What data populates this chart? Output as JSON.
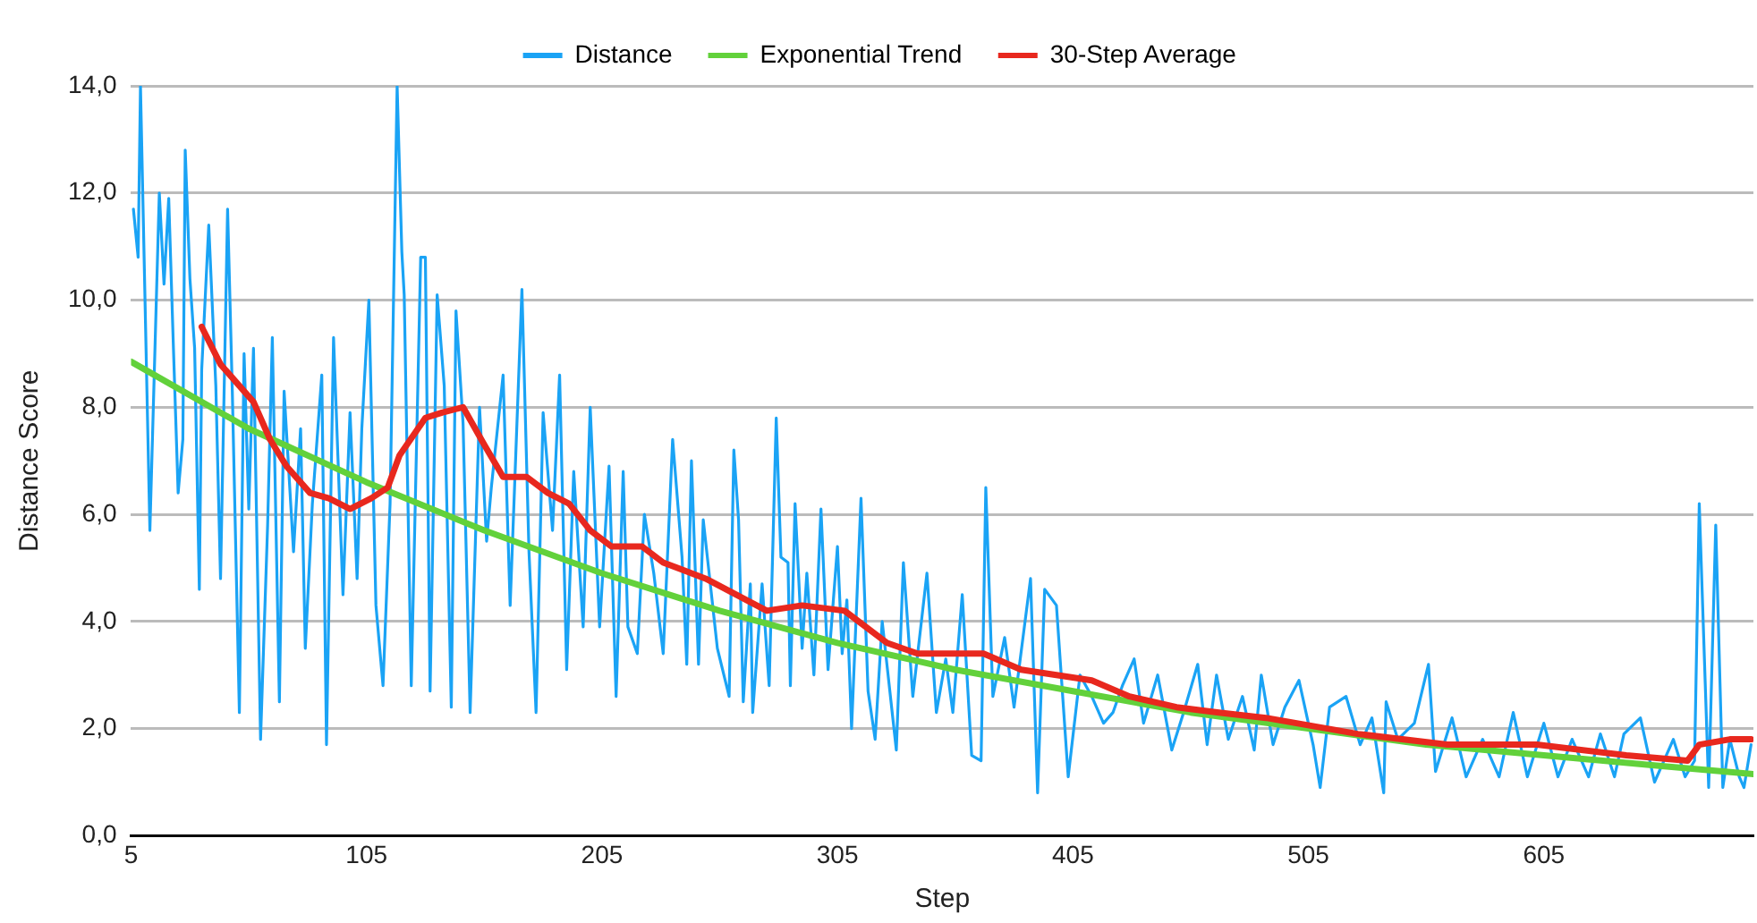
{
  "chart_data": {
    "type": "line",
    "xlabel": "Step",
    "ylabel": "Distance Score",
    "xlim": [
      5,
      694
    ],
    "xticks": [
      5,
      105,
      205,
      305,
      405,
      505,
      605
    ],
    "ylim": [
      0,
      14
    ],
    "yticks": [
      {
        "value": 0,
        "label": "0,0"
      },
      {
        "value": 2,
        "label": "2,0"
      },
      {
        "value": 4,
        "label": "4,0"
      },
      {
        "value": 6,
        "label": "6,0"
      },
      {
        "value": 8,
        "label": "8,0"
      },
      {
        "value": 10,
        "label": "10,0"
      },
      {
        "value": 12,
        "label": "12,0"
      },
      {
        "value": 14,
        "label": "14,0"
      }
    ],
    "grid": "y",
    "legend": "top",
    "marker": "none",
    "line_style": "solid",
    "series": [
      {
        "name": "Distance",
        "color": "#1aa3f5",
        "x": [
          6,
          8,
          9,
          13,
          17,
          19,
          21,
          23,
          25,
          27,
          28,
          30,
          32,
          34,
          35,
          38,
          41,
          43,
          46,
          48,
          51,
          53,
          55,
          57,
          60,
          63,
          65,
          68,
          70,
          74,
          77,
          79,
          82,
          86,
          88,
          91,
          95,
          98,
          101,
          103,
          106,
          109,
          112,
          115,
          118,
          120,
          121,
          124,
          128,
          130,
          132,
          135,
          138,
          141,
          143,
          146,
          149,
          153,
          156,
          158,
          163,
          166,
          171,
          174,
          177,
          180,
          184,
          187,
          190,
          193,
          197,
          200,
          204,
          208,
          211,
          214,
          216,
          220,
          223,
          227,
          231,
          235,
          239,
          241,
          243,
          246,
          248,
          251,
          254,
          259,
          261,
          263,
          265,
          268,
          269,
          273,
          276,
          279,
          281,
          284,
          285,
          287,
          290,
          292,
          295,
          298,
          301,
          305,
          307,
          309,
          311,
          315,
          318,
          321,
          324,
          330,
          333,
          337,
          343,
          347,
          351,
          354,
          358,
          362,
          366,
          368,
          371,
          376,
          380,
          387,
          390,
          393,
          398,
          403,
          408,
          413,
          418,
          422,
          426,
          431,
          435,
          441,
          447,
          452,
          458,
          462,
          466,
          471,
          477,
          482,
          485,
          490,
          495,
          501,
          507,
          510,
          514,
          521,
          527,
          532,
          537,
          538,
          543,
          550,
          556,
          559,
          566,
          572,
          579,
          586,
          592,
          598,
          605,
          611,
          617,
          624,
          629,
          635,
          639,
          646,
          652,
          660,
          665,
          669,
          671,
          675,
          678,
          681,
          684,
          688,
          690,
          693
        ],
        "values": [
          11.7,
          10.8,
          14.0,
          5.7,
          12.0,
          10.3,
          11.9,
          9.1,
          6.4,
          7.4,
          12.8,
          10.4,
          9.1,
          4.6,
          8.7,
          11.4,
          8.4,
          4.8,
          11.7,
          8.3,
          2.3,
          9.0,
          6.1,
          9.1,
          1.8,
          5.8,
          9.3,
          2.5,
          8.3,
          5.3,
          7.6,
          3.5,
          6.2,
          8.6,
          1.7,
          9.3,
          4.5,
          7.9,
          4.8,
          7.6,
          10.0,
          4.3,
          2.8,
          6.2,
          14.0,
          10.9,
          10.1,
          2.8,
          10.8,
          10.8,
          2.7,
          10.1,
          8.4,
          2.4,
          9.8,
          7.7,
          2.3,
          8.0,
          5.5,
          6.5,
          8.6,
          4.3,
          10.2,
          5.3,
          2.3,
          7.9,
          5.7,
          8.6,
          3.1,
          6.8,
          3.9,
          8.0,
          3.9,
          6.9,
          2.6,
          6.8,
          3.9,
          3.4,
          6.0,
          4.9,
          3.4,
          7.4,
          5.2,
          3.2,
          7.0,
          3.2,
          5.9,
          4.7,
          3.5,
          2.6,
          7.2,
          5.9,
          2.5,
          4.7,
          2.3,
          4.7,
          2.8,
          7.8,
          5.2,
          5.1,
          2.8,
          6.2,
          3.5,
          4.9,
          3.0,
          6.1,
          3.1,
          5.4,
          3.4,
          4.4,
          2.0,
          6.3,
          2.7,
          1.8,
          4.0,
          1.6,
          5.1,
          2.6,
          4.9,
          2.3,
          3.3,
          2.3,
          4.5,
          1.5,
          1.4,
          6.5,
          2.6,
          3.7,
          2.4,
          4.8,
          0.8,
          4.6,
          4.3,
          1.1,
          3.0,
          2.6,
          2.1,
          2.3,
          2.8,
          3.3,
          2.1,
          3.0,
          1.6,
          2.3,
          3.2,
          1.7,
          3.0,
          1.8,
          2.6,
          1.6,
          3.0,
          1.7,
          2.4,
          2.9,
          1.7,
          0.9,
          2.4,
          2.6,
          1.7,
          2.2,
          0.8,
          2.5,
          1.8,
          2.1,
          3.2,
          1.2,
          2.2,
          1.1,
          1.8,
          1.1,
          2.3,
          1.1,
          2.1,
          1.1,
          1.8,
          1.1,
          1.9,
          1.1,
          1.9,
          2.2,
          1.0,
          1.8,
          1.1,
          1.4,
          6.2,
          0.9,
          5.8,
          0.9,
          1.8,
          1.1,
          0.9,
          1.7
        ]
      },
      {
        "name": "Exponential Trend",
        "color": "#62d13b",
        "x": [
          5,
          55,
          105,
          155,
          205,
          255,
          305,
          355,
          405,
          455,
          505,
          555,
          605,
          655,
          694
        ],
        "values": [
          8.85,
          7.6,
          6.6,
          5.7,
          4.9,
          4.2,
          3.6,
          3.1,
          2.7,
          2.3,
          2.0,
          1.7,
          1.5,
          1.3,
          1.15
        ]
      },
      {
        "name": "30-Step Average",
        "color": "#e8281e",
        "x": [
          35,
          43,
          51,
          57,
          64,
          71,
          81,
          89,
          98,
          107,
          114,
          119,
          130,
          137,
          146,
          155,
          163,
          173,
          182,
          191,
          200,
          209,
          222,
          231,
          249,
          275,
          290,
          308,
          326,
          339,
          357,
          367,
          383,
          398,
          413,
          429,
          449,
          467,
          487,
          526,
          564,
          602,
          640,
          666,
          671,
          684,
          693
        ],
        "values": [
          9.5,
          8.8,
          8.4,
          8.1,
          7.4,
          6.9,
          6.4,
          6.3,
          6.1,
          6.3,
          6.5,
          7.1,
          7.8,
          7.9,
          8.0,
          7.3,
          6.7,
          6.7,
          6.4,
          6.2,
          5.7,
          5.4,
          5.4,
          5.1,
          4.8,
          4.2,
          4.3,
          4.2,
          3.6,
          3.4,
          3.4,
          3.4,
          3.1,
          3.0,
          2.9,
          2.6,
          2.4,
          2.3,
          2.2,
          1.9,
          1.7,
          1.7,
          1.5,
          1.4,
          1.7,
          1.8,
          1.8
        ]
      }
    ]
  }
}
